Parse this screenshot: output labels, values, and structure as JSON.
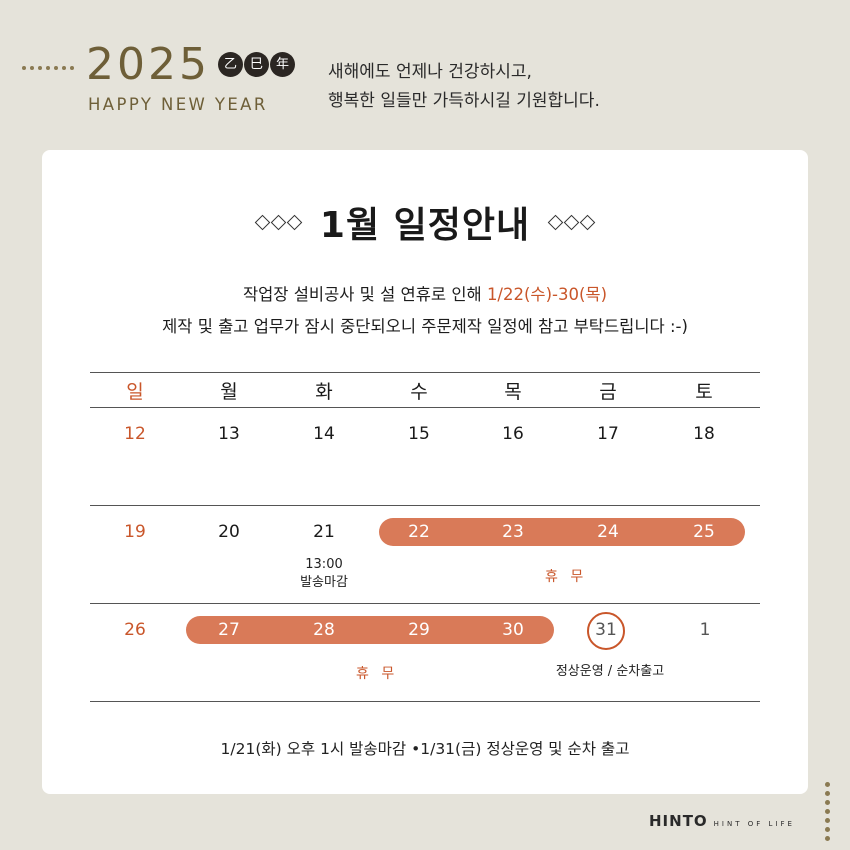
{
  "header": {
    "year": "2025",
    "zodiac": [
      "乙",
      "巳",
      "年"
    ],
    "subtitle": "HAPPY NEW YEAR",
    "greeting_line1": "새해에도 언제나 건강하시고,",
    "greeting_line2": "행복한 일들만 가득하시길 기원합니다."
  },
  "title": "1월 일정안내",
  "notice": {
    "line1_text": "작업장 설비공사 및 설 연휴로 인해 ",
    "line1_highlight": "1/22(수)-30(목)",
    "line2": "제작 및 출고 업무가 잠시 중단되오니 주문제작 일정에 참고 부탁드립니다 :-)"
  },
  "calendar": {
    "weekdays": [
      "일",
      "월",
      "화",
      "수",
      "목",
      "금",
      "토"
    ],
    "weeks": [
      [
        "12",
        "13",
        "14",
        "15",
        "16",
        "17",
        "18"
      ],
      [
        "19",
        "20",
        "21",
        "22",
        "23",
        "24",
        "25"
      ],
      [
        "26",
        "27",
        "28",
        "29",
        "30",
        "31",
        "1"
      ]
    ],
    "notes": {
      "deadline_time": "13:00",
      "deadline_label": "발송마감",
      "holiday1": "휴 무",
      "holiday2": "휴 무",
      "resume": "정상운영 / 순차출고"
    }
  },
  "footer": "1/21(화) 오후 1시 발송마감   •1/31(금) 정상운영 및 순차 출고",
  "brand": {
    "name": "HINTO",
    "tagline": "HINT OF LIFE"
  },
  "colors": {
    "background": "#e5e3da",
    "accent": "#c9562a",
    "bar": "#d97a58",
    "gold": "#6e5f38"
  }
}
